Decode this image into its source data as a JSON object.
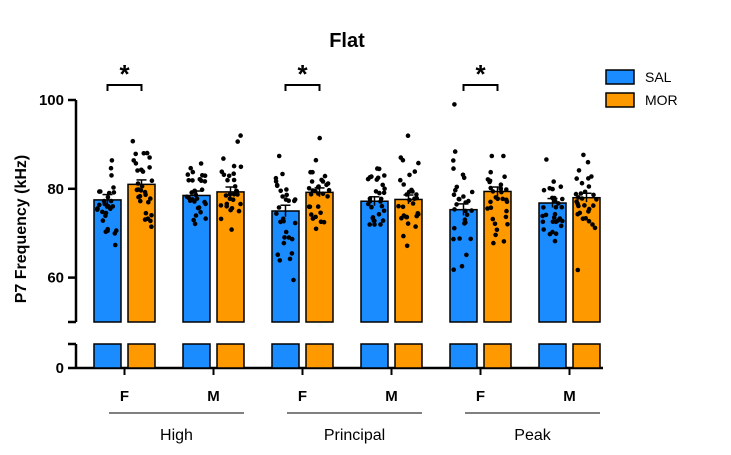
{
  "chart_data": {
    "type": "bar",
    "title": "Flat",
    "ylabel": "P7 Frequency (kHz)",
    "xlabel": "",
    "y_upper_range": [
      50,
      100
    ],
    "y_lower_range": [
      0,
      5
    ],
    "y_ticks": [
      {
        "value": 60,
        "label": "60"
      },
      {
        "value": 80,
        "label": "80"
      },
      {
        "value": 100,
        "label": "100"
      }
    ],
    "y_zero_label": "0",
    "axis_break": true,
    "groups": [
      "High",
      "Principal",
      "Peak"
    ],
    "sexes": [
      "F",
      "M"
    ],
    "series": [
      {
        "name": "SAL",
        "color": "#1a8cff"
      },
      {
        "name": "MOR",
        "color": "#ff9900"
      }
    ],
    "legend_position": "top-right",
    "significance_marker": "*",
    "significant_pairs": [
      {
        "group": "High",
        "sex": "F"
      },
      {
        "group": "Principal",
        "sex": "F"
      },
      {
        "group": "Peak",
        "sex": "F"
      }
    ],
    "bars": [
      {
        "group": "High",
        "sex": "F",
        "series": "SAL",
        "mean": 77.5,
        "sem": 1.2
      },
      {
        "group": "High",
        "sex": "F",
        "series": "MOR",
        "mean": 81.0,
        "sem": 1.0
      },
      {
        "group": "High",
        "sex": "M",
        "series": "SAL",
        "mean": 78.5,
        "sem": 1.0
      },
      {
        "group": "High",
        "sex": "M",
        "series": "MOR",
        "mean": 79.3,
        "sem": 1.1
      },
      {
        "group": "Principal",
        "sex": "F",
        "series": "SAL",
        "mean": 75.0,
        "sem": 1.3
      },
      {
        "group": "Principal",
        "sex": "F",
        "series": "MOR",
        "mean": 79.2,
        "sem": 1.0
      },
      {
        "group": "Principal",
        "sex": "M",
        "series": "SAL",
        "mean": 77.2,
        "sem": 1.0
      },
      {
        "group": "Principal",
        "sex": "M",
        "series": "MOR",
        "mean": 77.6,
        "sem": 1.0
      },
      {
        "group": "Peak",
        "sex": "F",
        "series": "SAL",
        "mean": 75.3,
        "sem": 1.3
      },
      {
        "group": "Peak",
        "sex": "F",
        "series": "MOR",
        "mean": 79.4,
        "sem": 1.0
      },
      {
        "group": "Peak",
        "sex": "M",
        "series": "SAL",
        "mean": 76.8,
        "sem": 1.0
      },
      {
        "group": "Peak",
        "sex": "M",
        "series": "MOR",
        "mean": 78.0,
        "sem": 1.0
      }
    ]
  }
}
